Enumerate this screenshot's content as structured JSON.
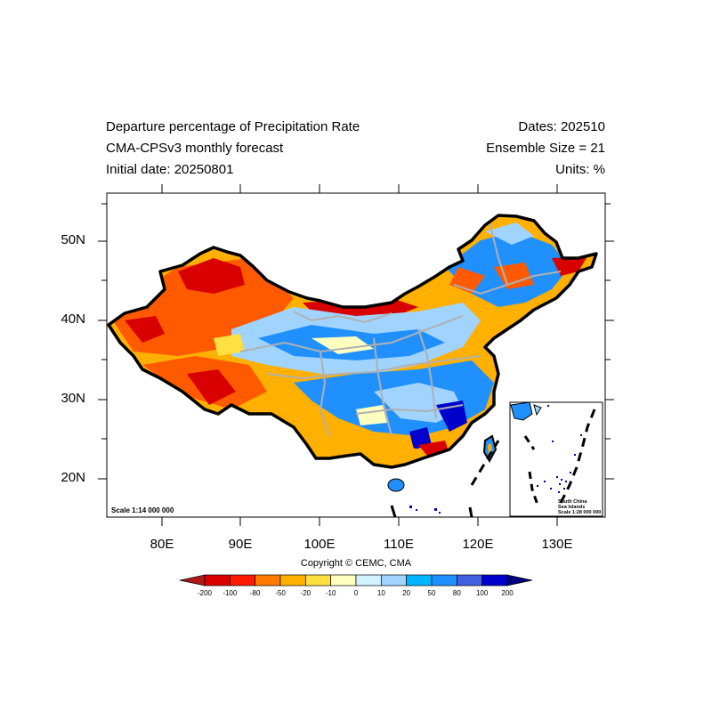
{
  "title": {
    "left_line1": "Departure percentage of Precipitation Rate",
    "left_line2": "CMA-CPSv3 monthly forecast",
    "left_line3": "Initial date: 20250801",
    "right_line1": "Dates: 202510",
    "right_line2": "Ensemble Size = 21",
    "right_line3": "Units: %"
  },
  "axes": {
    "lat_labels": [
      "50N",
      "40N",
      "30N",
      "20N"
    ],
    "lon_labels": [
      "80E",
      "90E",
      "100E",
      "110E",
      "120E",
      "130E"
    ]
  },
  "scale_main": "Scale 1:14 000 000",
  "inset": {
    "line1": "South China",
    "line2": "Sea Islands",
    "line3": "Scale 1:28 000 000"
  },
  "copyright": "Copyright © CEMC, CMA",
  "colorbar": {
    "labels": [
      "-200",
      "-100",
      "-80",
      "-50",
      "-20",
      "-10",
      "0",
      "10",
      "20",
      "50",
      "80",
      "100",
      "200"
    ],
    "colors": [
      "#b01818",
      "#d90000",
      "#ff1a00",
      "#ff7a00",
      "#ffb000",
      "#ffe040",
      "#ffffc0",
      "#d0f4ff",
      "#a0d4ff",
      "#00b4ff",
      "#2090ff",
      "#4060e0",
      "#0000cc",
      "#000080"
    ]
  },
  "map_colors": {
    "dry_deep": "#d90000",
    "dry": "#ff5a00",
    "dry_mild": "#ffb000",
    "near_normal": "#ffffc0",
    "wet_mild": "#a0d4ff",
    "wet": "#2090ff",
    "wet_deep": "#0000cc",
    "border": "#000000",
    "province_lines": "#b0b0b0"
  }
}
